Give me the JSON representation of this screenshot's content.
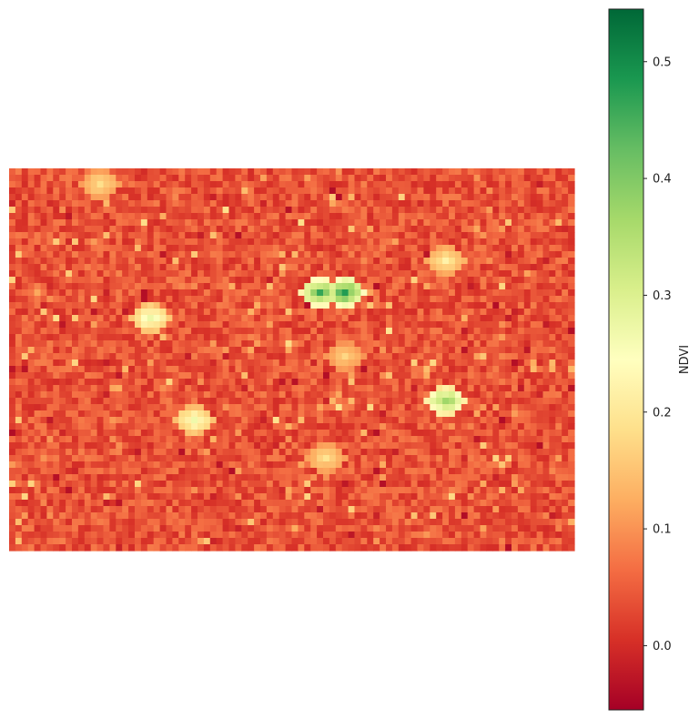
{
  "chart_data": {
    "type": "heatmap",
    "title": "",
    "xlabel": "",
    "ylabel": "",
    "axes_visible": false,
    "grid": false,
    "raster": {
      "rows": 60,
      "cols": 90,
      "description_values": "NDVI raster of urban area; mostly values between -0.05 and 0.1, with vegetated patches reaching up to ~0.54",
      "background_ndvi": 0.04,
      "value_min": -0.05,
      "value_max": 0.54,
      "patches": [
        {
          "row": 19,
          "col": 53,
          "ndvi": 0.52
        },
        {
          "row": 19,
          "col": 49,
          "ndvi": 0.48
        },
        {
          "row": 23,
          "col": 22,
          "ndvi": 0.3
        },
        {
          "row": 39,
          "col": 29,
          "ndvi": 0.28
        },
        {
          "row": 36,
          "col": 69,
          "ndvi": 0.42
        },
        {
          "row": 45,
          "col": 50,
          "ndvi": 0.2
        },
        {
          "row": 2,
          "col": 14,
          "ndvi": 0.2
        },
        {
          "row": 14,
          "col": 69,
          "ndvi": 0.22
        },
        {
          "row": 29,
          "col": 53,
          "ndvi": 0.18
        }
      ]
    },
    "colormap": "RdYlGn",
    "colormap_stops": [
      "#a50026",
      "#d73027",
      "#f46d43",
      "#fdae61",
      "#fee08b",
      "#ffffbf",
      "#d9ef8b",
      "#a6d96a",
      "#66bd63",
      "#1a9850",
      "#006837"
    ],
    "colorbar": {
      "label": "NDVI",
      "vmin": -0.055,
      "vmax": 0.545,
      "ticks": [
        0.0,
        0.1,
        0.2,
        0.3,
        0.4,
        0.5
      ],
      "tick_labels": [
        "0.0",
        "0.1",
        "0.2",
        "0.3",
        "0.4",
        "0.5"
      ]
    }
  }
}
